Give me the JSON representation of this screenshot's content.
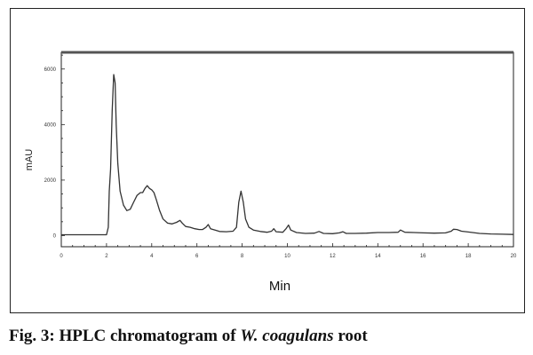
{
  "chart_data": {
    "type": "line",
    "xlabel": "Min",
    "ylabel": "mAU",
    "xlim": [
      0,
      20
    ],
    "ylim": [
      -400,
      6600
    ],
    "x_ticks": [
      "0",
      "2",
      "4",
      "6",
      "8",
      "10",
      "12",
      "14",
      "16",
      "18",
      "20"
    ],
    "y_ticks": [
      "0",
      "2000",
      "4000",
      "6000"
    ],
    "y_tick_values": [
      0,
      2000,
      4000,
      6000
    ],
    "grid": false,
    "legend": "none",
    "line_color": "#333333",
    "series": [
      {
        "points": [
          [
            0,
            30
          ],
          [
            1,
            30
          ],
          [
            2.0,
            30
          ],
          [
            2.08,
            300
          ],
          [
            2.12,
            1600
          ],
          [
            2.18,
            2400
          ],
          [
            2.25,
            4500
          ],
          [
            2.32,
            5800
          ],
          [
            2.38,
            5500
          ],
          [
            2.43,
            4000
          ],
          [
            2.5,
            2600
          ],
          [
            2.6,
            1600
          ],
          [
            2.75,
            1100
          ],
          [
            2.9,
            900
          ],
          [
            3.05,
            950
          ],
          [
            3.2,
            1200
          ],
          [
            3.35,
            1450
          ],
          [
            3.5,
            1550
          ],
          [
            3.6,
            1550
          ],
          [
            3.7,
            1700
          ],
          [
            3.8,
            1800
          ],
          [
            3.9,
            1700
          ],
          [
            4.0,
            1650
          ],
          [
            4.1,
            1550
          ],
          [
            4.2,
            1300
          ],
          [
            4.35,
            900
          ],
          [
            4.5,
            600
          ],
          [
            4.7,
            450
          ],
          [
            4.9,
            420
          ],
          [
            5.1,
            480
          ],
          [
            5.25,
            550
          ],
          [
            5.35,
            450
          ],
          [
            5.5,
            330
          ],
          [
            5.7,
            300
          ],
          [
            5.9,
            250
          ],
          [
            6.1,
            220
          ],
          [
            6.25,
            220
          ],
          [
            6.4,
            300
          ],
          [
            6.5,
            400
          ],
          [
            6.6,
            250
          ],
          [
            6.8,
            200
          ],
          [
            7.0,
            150
          ],
          [
            7.3,
            140
          ],
          [
            7.6,
            160
          ],
          [
            7.75,
            300
          ],
          [
            7.85,
            1200
          ],
          [
            7.95,
            1600
          ],
          [
            8.05,
            1200
          ],
          [
            8.15,
            600
          ],
          [
            8.3,
            300
          ],
          [
            8.5,
            200
          ],
          [
            8.8,
            150
          ],
          [
            9.1,
            120
          ],
          [
            9.3,
            160
          ],
          [
            9.4,
            250
          ],
          [
            9.5,
            140
          ],
          [
            9.8,
            120
          ],
          [
            9.95,
            260
          ],
          [
            10.05,
            380
          ],
          [
            10.15,
            200
          ],
          [
            10.4,
            110
          ],
          [
            10.8,
            80
          ],
          [
            11.2,
            90
          ],
          [
            11.4,
            150
          ],
          [
            11.6,
            80
          ],
          [
            12.0,
            70
          ],
          [
            12.3,
            100
          ],
          [
            12.45,
            140
          ],
          [
            12.6,
            80
          ],
          [
            13.0,
            80
          ],
          [
            13.5,
            90
          ],
          [
            14.0,
            110
          ],
          [
            14.5,
            110
          ],
          [
            14.9,
            120
          ],
          [
            15.0,
            200
          ],
          [
            15.2,
            120
          ],
          [
            15.6,
            110
          ],
          [
            16.0,
            100
          ],
          [
            16.5,
            90
          ],
          [
            17.0,
            100
          ],
          [
            17.25,
            160
          ],
          [
            17.35,
            230
          ],
          [
            17.5,
            220
          ],
          [
            17.7,
            160
          ],
          [
            18.0,
            130
          ],
          [
            18.5,
            80
          ],
          [
            19.0,
            60
          ],
          [
            19.5,
            50
          ],
          [
            20.0,
            40
          ]
        ]
      }
    ]
  },
  "caption": {
    "prefix": "Fig. 3: HPLC chromatogram of ",
    "species": "W. coagulans",
    "suffix": " root"
  }
}
